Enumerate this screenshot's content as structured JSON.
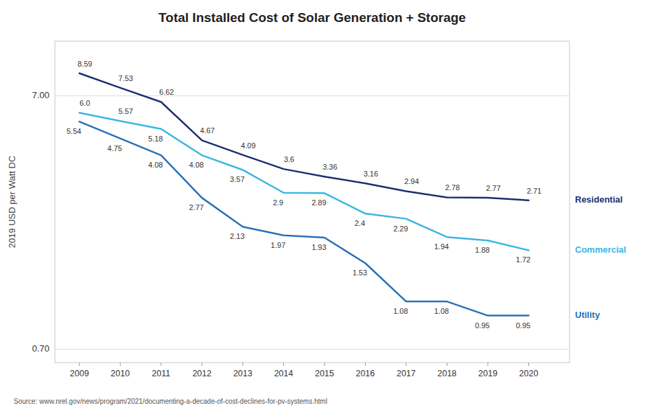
{
  "chart_data": {
    "type": "line",
    "title": "Total Installed Cost of Solar Generation + Storage",
    "y_label": "2019 USD per Watt DC",
    "source": "Source: www.nrel.gov/news/program/2021/documenting-a-decade-of-cost-declines-for-pv-systems.html",
    "x": [
      2009,
      2010,
      2011,
      2012,
      2013,
      2014,
      2015,
      2016,
      2017,
      2018,
      2019,
      2020
    ],
    "series": [
      {
        "name": "Residential",
        "color": "#1b2f6e",
        "values": [
          8.59,
          7.53,
          6.62,
          4.67,
          4.09,
          3.6,
          3.36,
          3.16,
          2.94,
          2.78,
          2.77,
          2.71
        ]
      },
      {
        "name": "Commercial",
        "color": "#3ab5e5",
        "values": [
          6.0,
          5.57,
          5.18,
          4.08,
          3.57,
          2.9,
          2.89,
          2.4,
          2.29,
          1.94,
          1.88,
          1.72
        ],
        "value_labels": [
          "6.0",
          "5.57",
          "5.18",
          "4.08",
          "3.57",
          "2.9",
          "2.89",
          "2.4",
          "2.29",
          "1.94",
          "1.88",
          "1.72"
        ]
      },
      {
        "name": "Utility",
        "color": "#2671b8",
        "values": [
          5.54,
          4.75,
          4.08,
          2.77,
          2.13,
          1.97,
          1.93,
          1.53,
          1.08,
          1.08,
          0.95,
          0.95
        ]
      }
    ],
    "xlim": [
      2008.4,
      2021.0
    ],
    "xticks": [
      2009,
      2010,
      2011,
      2012,
      2013,
      2014,
      2015,
      2016,
      2017,
      2018,
      2019,
      2020
    ],
    "ylim": [
      0.62,
      11.5
    ],
    "yticks": [
      {
        "value": 0.7,
        "label": "0.70"
      },
      {
        "value": 7,
        "label": "7.00"
      }
    ],
    "log": "y",
    "grid": true,
    "data_labels": true
  }
}
